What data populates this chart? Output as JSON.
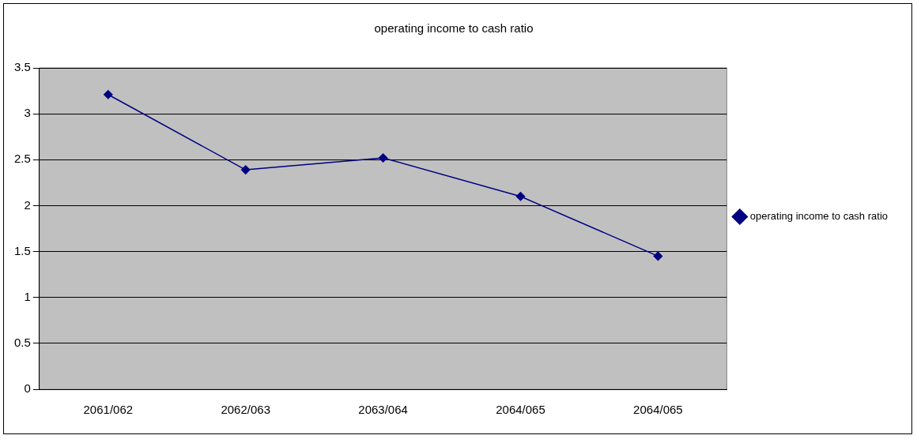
{
  "chart_data": {
    "type": "line",
    "title": "operating income to cash ratio",
    "categories": [
      "2061/062",
      "2062/063",
      "2063/064",
      "2064/065",
      "2064/065"
    ],
    "series": [
      {
        "name": "operating income to cash ratio",
        "color": "#000080",
        "values": [
          3.21,
          2.39,
          2.52,
          2.1,
          1.45
        ]
      }
    ],
    "ylim": [
      0,
      3.5
    ],
    "yticks": [
      0,
      0.5,
      1,
      1.5,
      2,
      2.5,
      3,
      3.5
    ],
    "grid": "y",
    "legend": "right",
    "marker": "diamond",
    "line_style": "solid"
  }
}
